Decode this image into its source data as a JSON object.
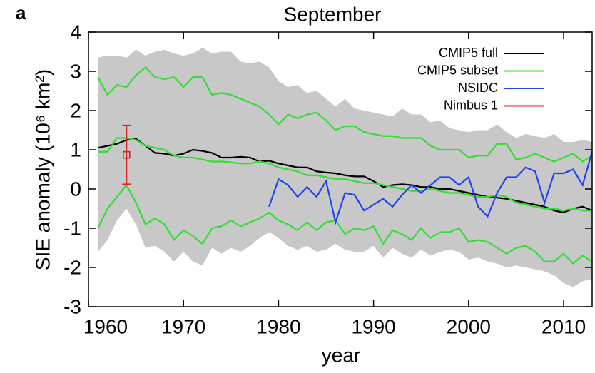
{
  "chart_data": {
    "type": "line",
    "panel_label": "a",
    "title": "September",
    "xlabel": "year",
    "ylabel": "SIE anomaly (10⁶ km²)",
    "xlim": [
      1960,
      2013
    ],
    "ylim": [
      -3,
      4
    ],
    "xticks": [
      1960,
      1970,
      1980,
      1990,
      2000,
      2010
    ],
    "yticks": [
      -3,
      -2,
      -1,
      0,
      1,
      2,
      3,
      4
    ],
    "legend": "upper right",
    "x": [
      1961,
      1962,
      1963,
      1964,
      1965,
      1966,
      1967,
      1968,
      1969,
      1970,
      1971,
      1972,
      1973,
      1974,
      1975,
      1976,
      1977,
      1978,
      1979,
      1980,
      1981,
      1982,
      1983,
      1984,
      1985,
      1986,
      1987,
      1988,
      1989,
      1990,
      1991,
      1992,
      1993,
      1994,
      1995,
      1996,
      1997,
      1998,
      1999,
      2000,
      2001,
      2002,
      2003,
      2004,
      2005,
      2006,
      2007,
      2008,
      2009,
      2010,
      2011,
      2012,
      2013
    ],
    "band": {
      "color": "#c8c8c8",
      "upper": [
        3.35,
        3.4,
        3.4,
        3.35,
        3.55,
        3.4,
        3.5,
        3.55,
        3.45,
        3.4,
        3.45,
        3.6,
        3.45,
        3.5,
        3.5,
        3.25,
        3.2,
        3.25,
        3.1,
        2.75,
        2.6,
        2.65,
        2.45,
        2.5,
        2.3,
        2.1,
        2.3,
        2.05,
        2.0,
        1.95,
        1.9,
        1.85,
        2.05,
        1.9,
        1.9,
        1.7,
        1.75,
        1.55,
        1.5,
        1.45,
        1.5,
        1.5,
        1.65,
        1.45,
        1.3,
        1.4,
        1.35,
        1.3,
        1.4,
        1.2,
        1.2,
        1.25,
        1.2
      ],
      "lower": [
        -1.6,
        -1.3,
        -0.8,
        -0.5,
        -0.9,
        -1.5,
        -1.45,
        -1.6,
        -1.85,
        -1.6,
        -1.85,
        -1.95,
        -1.5,
        -1.65,
        -1.5,
        -1.6,
        -1.45,
        -1.25,
        -1.1,
        -1.25,
        -1.45,
        -1.55,
        -1.45,
        -1.6,
        -1.55,
        -1.4,
        -1.55,
        -1.6,
        -1.6,
        -1.45,
        -1.75,
        -1.5,
        -1.65,
        -1.75,
        -1.55,
        -1.7,
        -1.6,
        -1.55,
        -1.6,
        -1.8,
        -1.75,
        -1.85,
        -1.9,
        -2.0,
        -1.95,
        -2.0,
        -2.05,
        -2.1,
        -2.2,
        -2.4,
        -2.5,
        -2.35,
        -2.3
      ]
    },
    "series": [
      {
        "name": "CMIP5 full",
        "color": "#000000",
        "values": [
          1.05,
          1.1,
          1.15,
          1.25,
          1.28,
          1.1,
          0.92,
          0.9,
          0.85,
          0.9,
          1.0,
          0.97,
          0.92,
          0.8,
          0.8,
          0.82,
          0.8,
          0.7,
          0.72,
          0.65,
          0.6,
          0.55,
          0.55,
          0.45,
          0.42,
          0.4,
          0.35,
          0.32,
          0.32,
          0.2,
          0.05,
          0.1,
          0.12,
          0.1,
          0.05,
          0.05,
          0.0,
          0.0,
          -0.05,
          -0.1,
          -0.15,
          -0.2,
          -0.22,
          -0.25,
          -0.3,
          -0.35,
          -0.4,
          -0.45,
          -0.55,
          -0.6,
          -0.5,
          -0.45,
          -0.55
        ]
      },
      {
        "name": "CMIP5 subset",
        "color": "#33dd33",
        "values": [
          0.95,
          0.95,
          1.3,
          1.3,
          1.25,
          1.1,
          1.05,
          1.0,
          0.85,
          0.8,
          0.8,
          0.75,
          0.7,
          0.7,
          0.68,
          0.65,
          0.65,
          0.7,
          0.65,
          0.55,
          0.5,
          0.45,
          0.35,
          0.35,
          0.3,
          0.25,
          0.25,
          0.2,
          0.15,
          0.15,
          0.1,
          0.05,
          0,
          -0.05,
          -0.05,
          0,
          -0.05,
          -0.1,
          -0.1,
          -0.15,
          -0.2,
          -0.2,
          -0.15,
          -0.2,
          -0.35,
          -0.4,
          -0.45,
          -0.5,
          -0.5,
          -0.55,
          -0.5,
          -0.55,
          -0.55
        ],
        "upper": [
          2.85,
          2.4,
          2.65,
          2.6,
          2.9,
          3.1,
          2.85,
          2.8,
          2.85,
          2.6,
          2.85,
          2.85,
          2.4,
          2.45,
          2.4,
          2.3,
          2.2,
          2.1,
          1.9,
          1.65,
          1.9,
          1.8,
          1.9,
          1.95,
          1.75,
          1.5,
          1.6,
          1.6,
          1.45,
          1.4,
          1.35,
          1.35,
          1.3,
          1.3,
          1.3,
          1.1,
          1.0,
          1.0,
          1.0,
          0.8,
          0.85,
          0.85,
          1.15,
          1.15,
          0.75,
          0.8,
          0.9,
          0.8,
          0.7,
          0.8,
          0.9,
          0.7,
          0.85
        ],
        "lower": [
          -1.0,
          -0.5,
          -0.2,
          0.1,
          -0.35,
          -0.9,
          -0.75,
          -0.9,
          -1.3,
          -1.05,
          -1.2,
          -1.4,
          -1.0,
          -0.95,
          -0.8,
          -0.95,
          -0.85,
          -0.75,
          -0.6,
          -0.8,
          -0.9,
          -1.05,
          -0.85,
          -1.05,
          -0.85,
          -0.8,
          -1.15,
          -1.0,
          -1.05,
          -0.95,
          -1.4,
          -1.05,
          -1.15,
          -1.3,
          -1.0,
          -1.25,
          -1.1,
          -1.1,
          -1.0,
          -1.35,
          -1.3,
          -1.35,
          -1.5,
          -1.65,
          -1.5,
          -1.45,
          -1.6,
          -1.85,
          -1.85,
          -1.65,
          -1.9,
          -1.7,
          -1.85
        ]
      },
      {
        "name": "NSIDC",
        "color": "#2244ee",
        "values": [
          null,
          null,
          null,
          null,
          null,
          null,
          null,
          null,
          null,
          null,
          null,
          null,
          null,
          null,
          null,
          null,
          null,
          null,
          -0.45,
          0.25,
          0.1,
          -0.2,
          0.05,
          -0.2,
          0.2,
          -0.85,
          -0.1,
          -0.15,
          -0.55,
          -0.4,
          -0.25,
          -0.45,
          -0.15,
          0.1,
          -0.1,
          0.1,
          0.3,
          0.3,
          0.1,
          0.3,
          -0.45,
          -0.7,
          -0.1,
          0.3,
          0.3,
          0.55,
          0.45,
          -0.35,
          0.4,
          0.4,
          0.5,
          0.1,
          0.95
        ]
      },
      {
        "name": "Nimbus 1",
        "color": "#dd2222",
        "x": [
          1964
        ],
        "values": [
          0.87
        ],
        "errors": [
          0.75
        ]
      }
    ]
  }
}
